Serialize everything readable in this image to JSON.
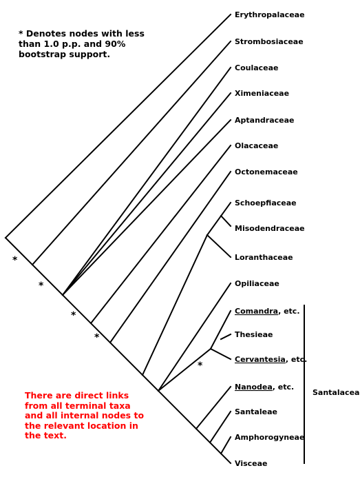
{
  "legend": {
    "text": "* Denotes nodes with less than 1.0 p.p. and 90% bootstrap support."
  },
  "note": {
    "text": "There are direct links from all terminal taxa and all internal nodes to the relevant location in the text."
  },
  "group_label": "Santalaceae",
  "star_symbol": "*",
  "taxa": [
    {
      "name": "Erythropalaceae"
    },
    {
      "name": "Strombosiaceae"
    },
    {
      "name": "Coulaceae"
    },
    {
      "name": "Ximeniaceae"
    },
    {
      "name": "Aptandraceae"
    },
    {
      "name": "Olacaceae"
    },
    {
      "name": "Octonemaceae"
    },
    {
      "name": "Schoepfiaceae"
    },
    {
      "name": "Misodendraceae"
    },
    {
      "name": "Loranthaceae"
    },
    {
      "name": "Opiliaceae"
    },
    {
      "name": "Comandra",
      "suffix": ", etc.",
      "underline": true
    },
    {
      "name": "Thesieae"
    },
    {
      "name": "Cervantesia",
      "suffix": ", etc.",
      "underline": true
    },
    {
      "name": "Nanodea",
      "suffix": ", etc.",
      "underline": true
    },
    {
      "name": "Santaleae"
    },
    {
      "name": "Amphorogyneae"
    },
    {
      "name": "Visceae"
    }
  ]
}
